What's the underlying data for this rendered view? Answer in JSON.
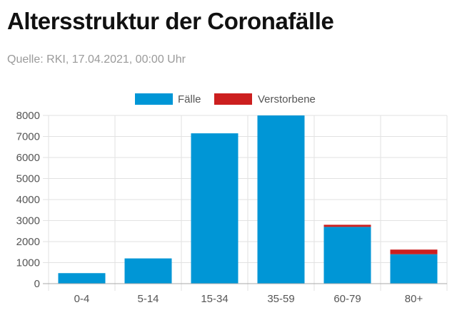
{
  "header": {
    "title": "Altersstruktur der Coronafälle",
    "source": "Quelle: RKI, 17.04.2021, 00:00 Uhr"
  },
  "colors": {
    "cases": "#0096d6",
    "deaths": "#cc1f1f",
    "grid": "#e2e2e2",
    "axis": "#aaaaaa"
  },
  "chart_data": {
    "type": "bar",
    "stacked": true,
    "categories": [
      "0-4",
      "5-14",
      "15-34",
      "35-59",
      "60-79",
      "80+"
    ],
    "series": [
      {
        "name": "Fälle",
        "values": [
          500,
          1200,
          7150,
          8000,
          2700,
          1400
        ]
      },
      {
        "name": "Verstorbene",
        "values": [
          0,
          0,
          0,
          0,
          100,
          220
        ]
      }
    ],
    "ylim": [
      0,
      8000
    ],
    "yticks": [
      "0",
      "1000",
      "2000",
      "3000",
      "4000",
      "5000",
      "6000",
      "7000",
      "8000"
    ],
    "grid": true,
    "legend_position": "top"
  }
}
